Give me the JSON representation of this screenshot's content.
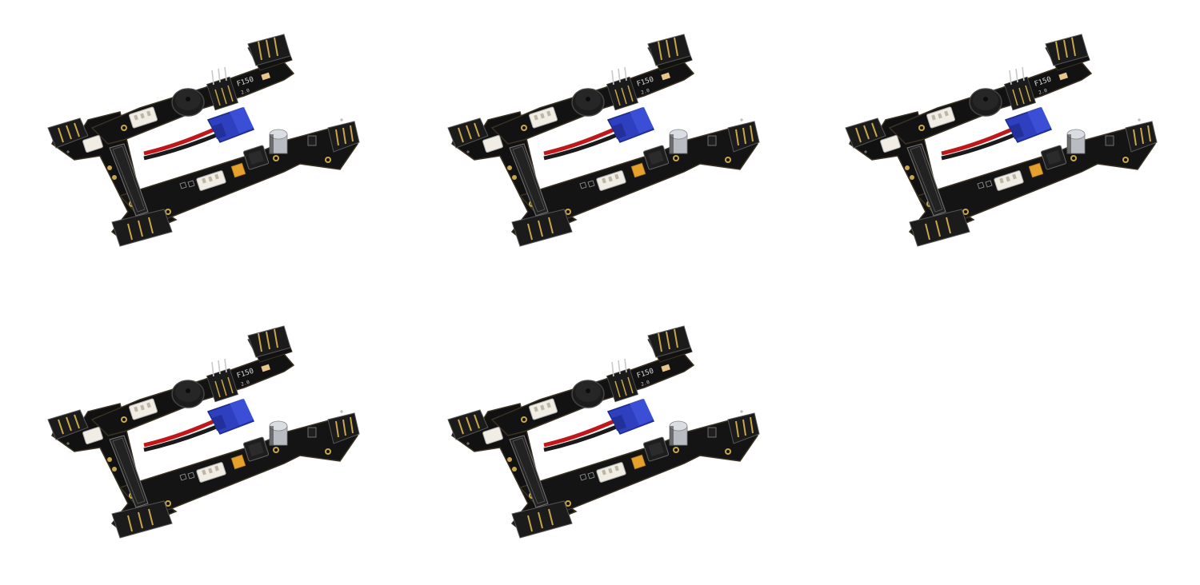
{
  "image": {
    "description_type": "product-photo-grid",
    "item_count": 5,
    "layout": "3 on top row, 2 on bottom row"
  },
  "board": {
    "silkscreen_model": "F150",
    "silkscreen_version": "2.0",
    "connector_icon": "xt30-connector-icon",
    "buzzer_icon": "buzzer-icon",
    "capacitor_icon": "capacitor-icon"
  },
  "colors": {
    "background": "#ffffff",
    "pcb": "#111111",
    "pcb_edge": "#2a2418",
    "gold": "#c9a64a",
    "connector_blue": "#2e3fbf",
    "wire_red": "#c0171b",
    "wire_black": "#1a1a1a",
    "jst_white": "#f1ede4",
    "header_black": "#1b1b1b",
    "orange": "#e6a12c"
  }
}
